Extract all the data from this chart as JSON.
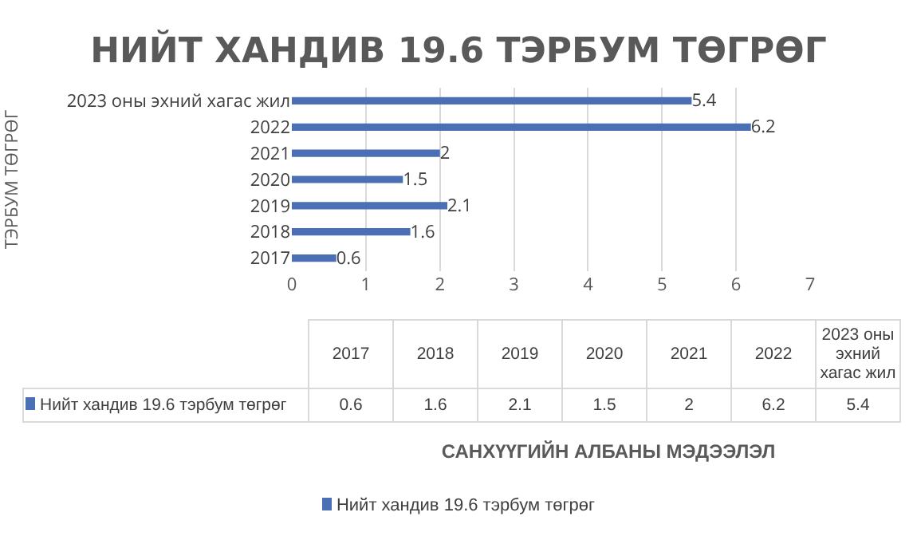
{
  "chart_data": [
    {
      "type": "bar",
      "orientation": "horizontal",
      "title": "НИЙТ ХАНДИВ 19.6 ТЭРБУМ ТӨГРӨГ",
      "ylabel": "ТЭРБУМ ТӨГРӨГ",
      "annotations": [
        "САНХҮҮГИЙН АЛБАНЫ МЭДЭЭЛЭЛ"
      ],
      "categories": [
        "2023 оны эхний хагас жил",
        "2022",
        "2021",
        "2020",
        "2019",
        "2018",
        "2017"
      ],
      "series": [
        {
          "name": "Нийт хандив 19.6 тэрбум төгрөг",
          "color": "#4a6fb5",
          "values": [
            5.4,
            6.2,
            2,
            1.5,
            2.1,
            1.6,
            0.6
          ]
        }
      ],
      "xlim": [
        0,
        7
      ],
      "xticks": [
        0,
        1,
        2,
        3,
        4,
        5,
        6,
        7
      ],
      "grid": "x",
      "legend": "bottom",
      "data_labels": true
    },
    {
      "type": "heatmap",
      "categories": [
        "2017",
        "2018",
        "2019",
        "2020",
        "2021",
        "2022",
        "2023 оны эхний хагас жил"
      ],
      "y_categories": [
        "Нийт хандив 19.6 тэрбум төгрөг"
      ],
      "cells": [
        [
          0.6,
          1.6,
          2.1,
          1.5,
          2,
          6.2,
          5.4
        ]
      ],
      "data_labels": true
    }
  ]
}
